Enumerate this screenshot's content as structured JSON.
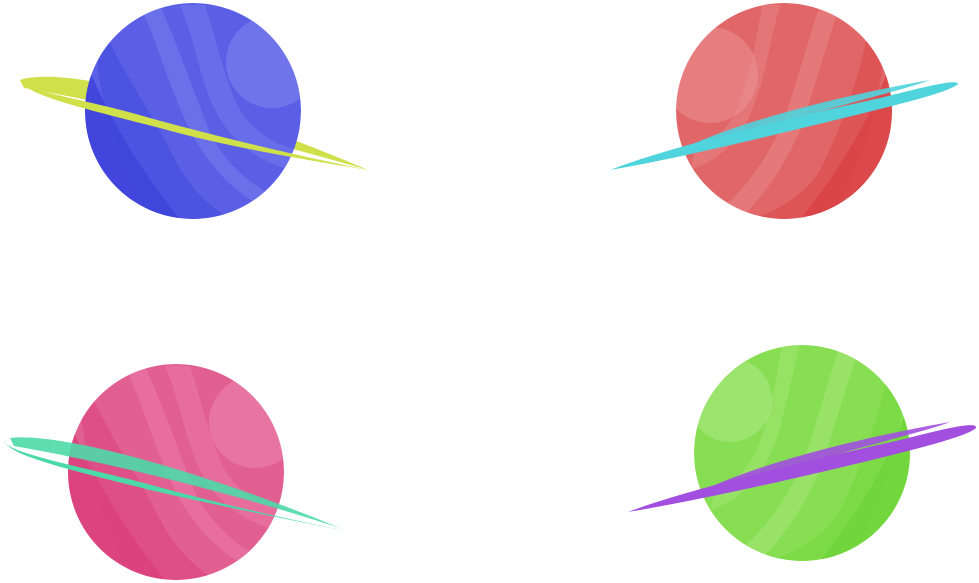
{
  "planets": [
    {
      "name": "blue-planet",
      "body_color": "#5a5fe6",
      "shade_color": "#3f44dc",
      "highlight_color": "#8a8ef2",
      "ring_color": "#cfe04a",
      "ring_direction": "descending-right"
    },
    {
      "name": "red-planet",
      "body_color": "#e06668",
      "shade_color": "#d94446",
      "highlight_color": "#ee9a9b",
      "ring_color": "#4fd3dc",
      "ring_direction": "ascending-right"
    },
    {
      "name": "pink-planet",
      "body_color": "#e25f92",
      "shade_color": "#db3f7c",
      "highlight_color": "#f08db4",
      "ring_color": "#4cd9a8",
      "ring_direction": "descending-right"
    },
    {
      "name": "green-planet",
      "body_color": "#88de52",
      "shade_color": "#6fd63a",
      "highlight_color": "#b4ec8e",
      "ring_color": "#a24fe0",
      "ring_direction": "ascending-right"
    }
  ]
}
